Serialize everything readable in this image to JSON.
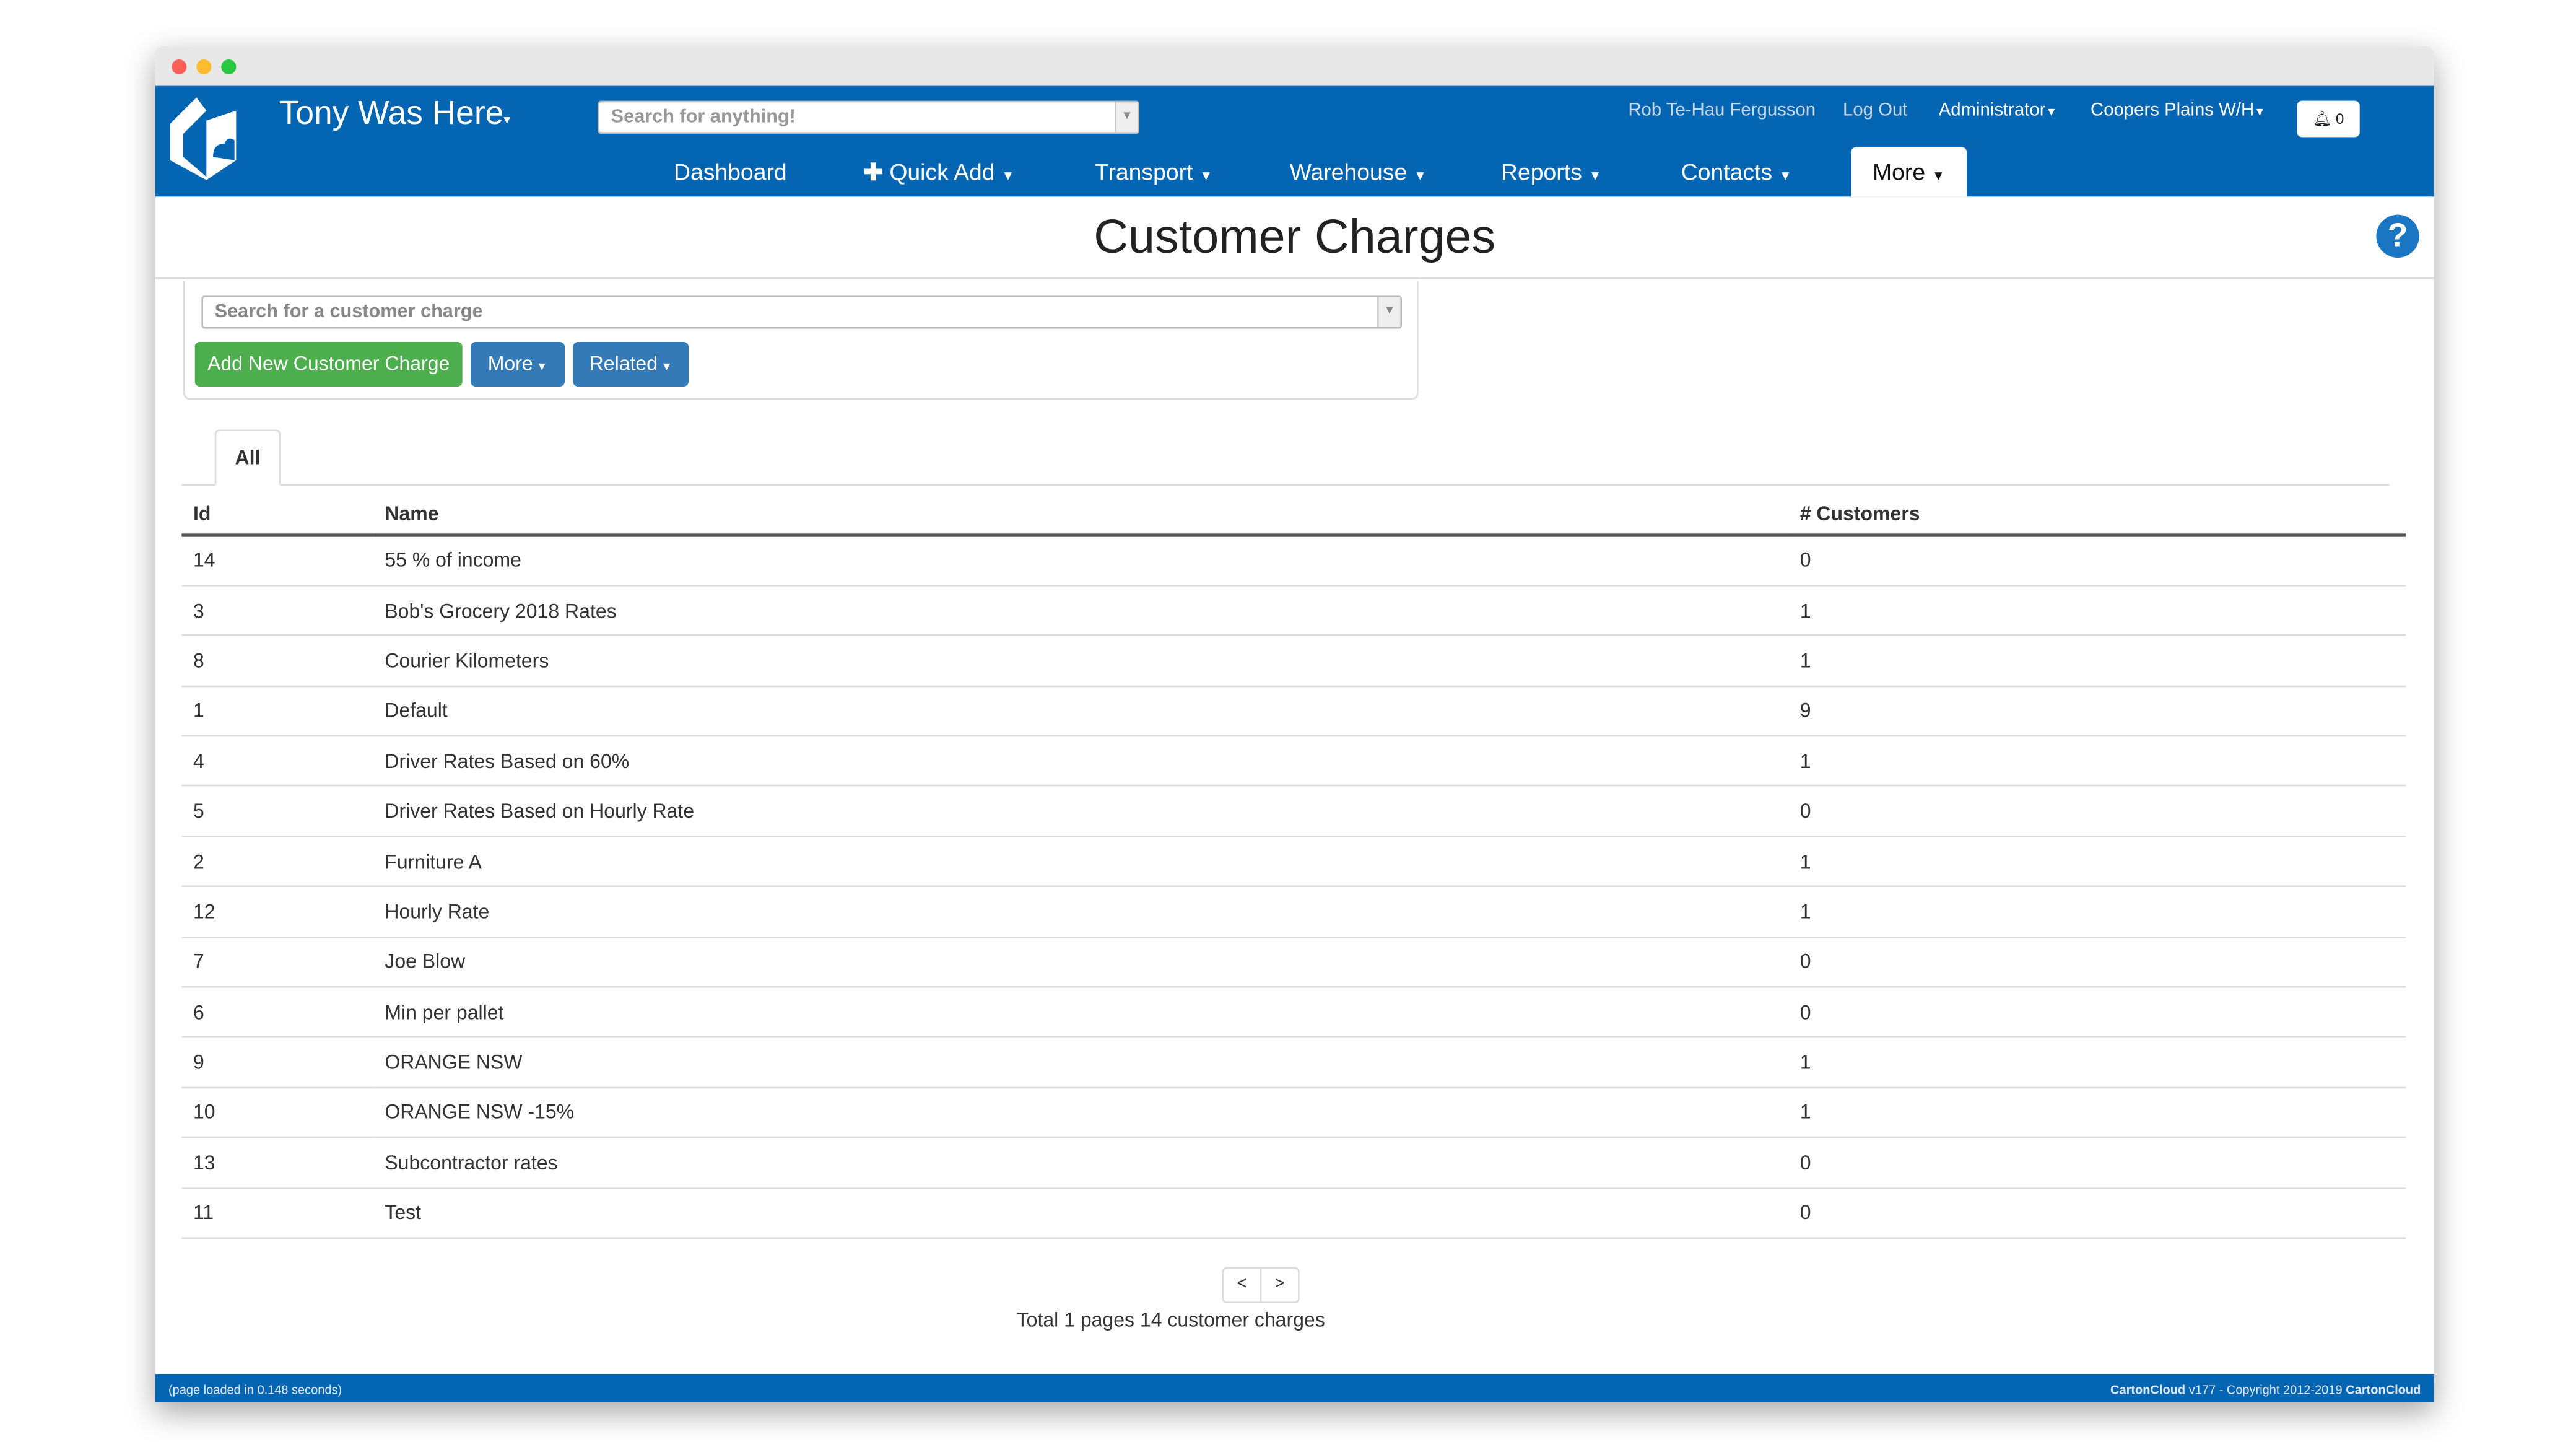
{
  "window": {
    "controls": {
      "close": "#fc5f57",
      "minimize": "#fdbc2e",
      "maximize": "#28c840"
    }
  },
  "header": {
    "brand": "Tony Was Here",
    "search_placeholder": "Search for anything!",
    "nav": [
      "Dashboard",
      "Quick Add",
      "Transport",
      "Warehouse",
      "Reports",
      "Contacts",
      "More"
    ],
    "user": "Rob Te-Hau Fergusson",
    "logout": "Log Out",
    "role": "Administrator",
    "warehouse": "Coopers Plains W/H",
    "notifications": "0",
    "brand_color": "#0466b3"
  },
  "page": {
    "title": "Customer Charges",
    "search_placeholder": "Search for a customer charge",
    "buttons": {
      "add": "Add New Customer Charge",
      "more": "More",
      "related": "Related"
    },
    "tabs": [
      "All"
    ]
  },
  "table": {
    "columns": [
      "Id",
      "Name",
      "# Customers"
    ],
    "rows": [
      [
        "14",
        "55 % of income",
        "0"
      ],
      [
        "3",
        "Bob's Grocery 2018 Rates",
        "1"
      ],
      [
        "8",
        "Courier Kilometers",
        "1"
      ],
      [
        "1",
        "Default",
        "9"
      ],
      [
        "4",
        "Driver Rates Based on 60%",
        "1"
      ],
      [
        "5",
        "Driver Rates Based on Hourly Rate",
        "0"
      ],
      [
        "2",
        "Furniture A",
        "1"
      ],
      [
        "12",
        "Hourly Rate",
        "1"
      ],
      [
        "7",
        "Joe Blow",
        "0"
      ],
      [
        "6",
        "Min per pallet",
        "0"
      ],
      [
        "9",
        "ORANGE NSW",
        "1"
      ],
      [
        "10",
        "ORANGE NSW -15%",
        "1"
      ],
      [
        "13",
        "Subcontractor rates",
        "0"
      ],
      [
        "11",
        "Test",
        "0"
      ]
    ]
  },
  "pagination": {
    "prev": "<",
    "next": ">",
    "summary": "Total 1 pages 14 customer charges"
  },
  "footer": {
    "load": "(page loaded in 0.148 seconds)",
    "copyright_prefix": "CartonCloud",
    "copyright": " v177 - Copyright 2012-2019 ",
    "copyright_suffix": "CartonCloud"
  }
}
